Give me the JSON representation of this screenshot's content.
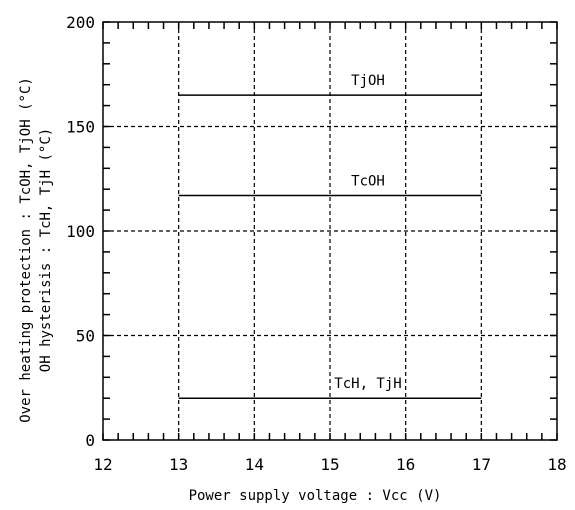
{
  "chart_data": {
    "type": "line",
    "xlabel": "Power supply voltage : Vcc (V)",
    "ylabel_line1": "Over heating protection : TcOH, TjOH (°C)",
    "ylabel_line2": "OH hysterisis : TcH, TjH (°C)",
    "xlim": [
      12,
      18
    ],
    "ylim": [
      0,
      200
    ],
    "x_ticks": [
      12,
      13,
      14,
      15,
      16,
      17,
      18
    ],
    "y_ticks": [
      0,
      50,
      100,
      150,
      200
    ],
    "grid": true,
    "series": [
      {
        "name": "TjOH",
        "x": [
          13,
          17
        ],
        "y": [
          165,
          165
        ]
      },
      {
        "name": "TcOH",
        "x": [
          13,
          17
        ],
        "y": [
          117,
          117
        ]
      },
      {
        "name": "TcH, TjH",
        "x": [
          13,
          17
        ],
        "y": [
          20,
          20
        ]
      }
    ]
  }
}
